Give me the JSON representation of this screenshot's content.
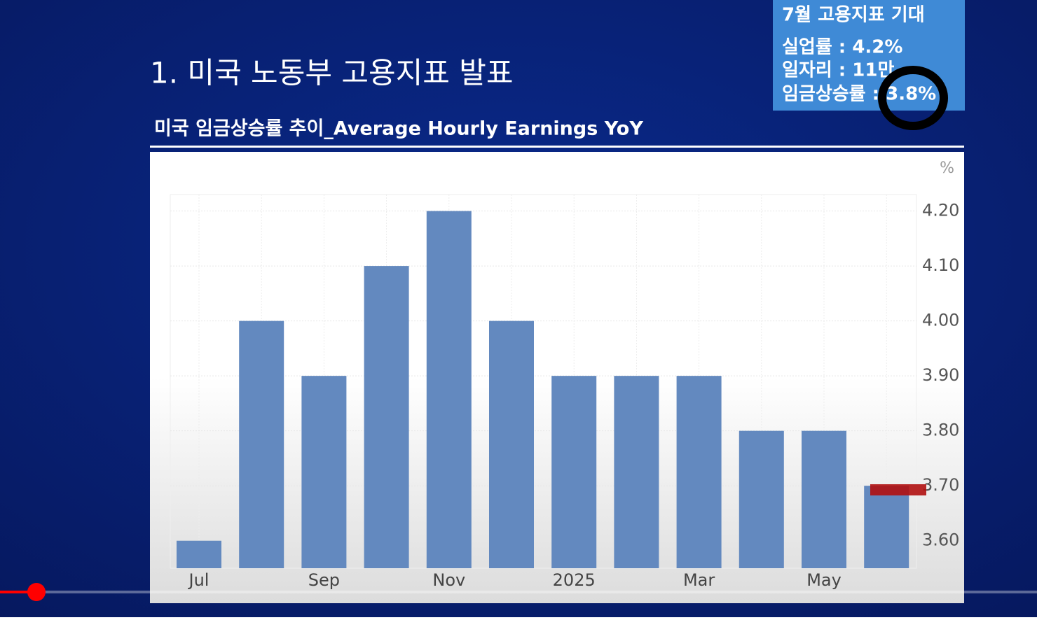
{
  "slide_title": "1. 미국 노동부 고용지표 발표",
  "note": {
    "title": "7월 고용지표 기대",
    "lines": [
      "실업률 : 4.2%",
      "일자리 : 11만",
      "임금상승률 : 3.8%"
    ]
  },
  "chart_data": {
    "type": "bar",
    "title": "미국 임금상승률 추이_Average Hourly Earnings YoY",
    "y_unit": "%",
    "categories": [
      "Jul",
      null,
      "Sep",
      null,
      "Nov",
      null,
      "2025",
      null,
      "Mar",
      null,
      "May",
      null
    ],
    "values": [
      3.6,
      4.0,
      3.9,
      4.1,
      4.2,
      4.0,
      3.9,
      3.9,
      3.9,
      3.8,
      3.8,
      3.7
    ],
    "color": "#6389bf",
    "ylim": [
      3.55,
      4.23
    ],
    "yticks": [
      {
        "value": 3.6,
        "label": "3.60"
      },
      {
        "value": 3.7,
        "label": "3.70"
      },
      {
        "value": 3.8,
        "label": "3.80"
      },
      {
        "value": 3.9,
        "label": "3.90"
      },
      {
        "value": 4.0,
        "label": "4.00"
      },
      {
        "value": 4.1,
        "label": "4.10"
      },
      {
        "value": 4.2,
        "label": "4.20"
      }
    ],
    "grid": true
  }
}
